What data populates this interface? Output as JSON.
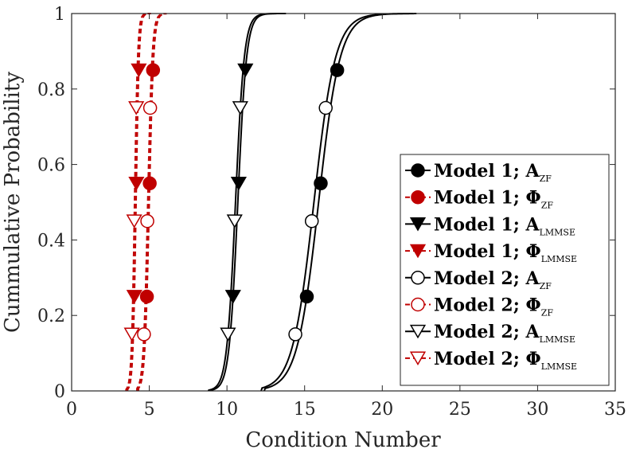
{
  "chart_data": {
    "type": "line",
    "title": "",
    "xlabel": "Condition Number",
    "ylabel": "Cummulative Probability",
    "xlim": [
      0,
      35
    ],
    "ylim": [
      0,
      1
    ],
    "xticks": [
      0,
      5,
      10,
      15,
      20,
      25,
      30,
      35
    ],
    "yticks": [
      0,
      0.2,
      0.4,
      0.6,
      0.8,
      1
    ],
    "xtick_labels": [
      "0",
      "5",
      "10",
      "15",
      "20",
      "25",
      "30",
      "35"
    ],
    "ytick_labels": [
      "0",
      "0.2",
      "0.4",
      "0.6",
      "0.8",
      "1"
    ],
    "grid": false,
    "legend_position": "bottom-right",
    "series": [
      {
        "name": "Model 1; A_ZF",
        "label_main": "Model 1; A",
        "label_sub": "ZF",
        "color": "#000000",
        "dash": "solid",
        "marker": "circle",
        "filled": true,
        "cdf_mean": 15.9,
        "cdf_scale": 0.69,
        "x_range": [
          12.4,
          22.2
        ],
        "marker_y": [
          0.25,
          0.55,
          0.85
        ]
      },
      {
        "name": "Model 1; Φ_ZF",
        "label_main": "Model 1; Φ",
        "label_sub": "ZF",
        "color": "#c00000",
        "dash": "dashed",
        "marker": "circle",
        "filled": true,
        "cdf_mean": 5.0,
        "cdf_scale": 0.14,
        "x_range": [
          4.3,
          6.1
        ],
        "marker_y": [
          0.25,
          0.55,
          0.85
        ]
      },
      {
        "name": "Model 1; A_LMMSE",
        "label_main": "Model 1; A",
        "label_sub": "LMMSE",
        "color": "#000000",
        "dash": "solid",
        "marker": "triangle-down",
        "filled": true,
        "cdf_mean": 10.7,
        "cdf_scale": 0.28,
        "x_range": [
          9.0,
          13.8
        ],
        "marker_y": [
          0.25,
          0.55,
          0.85
        ]
      },
      {
        "name": "Model 1; Φ_LMMSE",
        "label_main": "Model 1; Φ",
        "label_sub": "LMMSE",
        "color": "#c00000",
        "dash": "dashed",
        "marker": "triangle-down",
        "filled": true,
        "cdf_mean": 4.15,
        "cdf_scale": 0.1,
        "x_range": [
          3.6,
          5.1
        ],
        "marker_y": [
          0.25,
          0.55,
          0.85
        ]
      },
      {
        "name": "Model 2; A_ZF",
        "label_main": "Model 2; A",
        "label_sub": "ZF",
        "color": "#000000",
        "dash": "solid",
        "marker": "circle",
        "filled": false,
        "cdf_mean": 15.6,
        "cdf_scale": 0.69,
        "x_range": [
          12.2,
          22.0
        ],
        "marker_y": [
          0.15,
          0.45,
          0.75
        ]
      },
      {
        "name": "Model 2; Φ_ZF",
        "label_main": "Model 2; Φ",
        "label_sub": "ZF",
        "color": "#c00000",
        "dash": "dashed",
        "marker": "circle",
        "filled": false,
        "cdf_mean": 4.9,
        "cdf_scale": 0.14,
        "x_range": [
          4.2,
          6.0
        ],
        "marker_y": [
          0.15,
          0.45,
          0.75
        ]
      },
      {
        "name": "Model 2; A_LMMSE",
        "label_main": "Model 2; A",
        "label_sub": "LMMSE",
        "color": "#000000",
        "dash": "solid",
        "marker": "triangle-down",
        "filled": false,
        "cdf_mean": 10.55,
        "cdf_scale": 0.28,
        "x_range": [
          8.8,
          13.6
        ],
        "marker_y": [
          0.15,
          0.45,
          0.75
        ]
      },
      {
        "name": "Model 2; Φ_LMMSE",
        "label_main": "Model 2; Φ",
        "label_sub": "LMMSE",
        "color": "#c00000",
        "dash": "dashed",
        "marker": "triangle-down",
        "filled": false,
        "cdf_mean": 4.05,
        "cdf_scale": 0.1,
        "x_range": [
          3.5,
          5.0
        ],
        "marker_y": [
          0.15,
          0.45,
          0.75
        ]
      }
    ]
  }
}
